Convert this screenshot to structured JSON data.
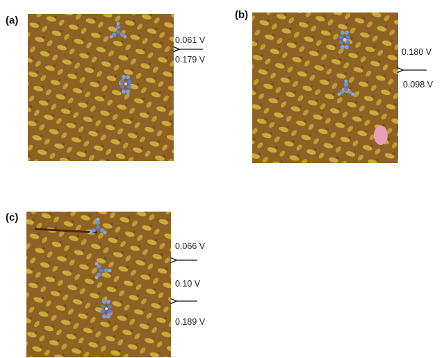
{
  "panels": [
    {
      "label": "(a)",
      "voltages": [
        "0.061 V",
        "0.179 V"
      ]
    },
    {
      "label": "(b)",
      "voltages": [
        "0.180 V",
        "0.098 V"
      ]
    },
    {
      "label": "(c)",
      "voltages": [
        "0.066 V",
        "0.10 V",
        "0.189 V"
      ]
    }
  ]
}
